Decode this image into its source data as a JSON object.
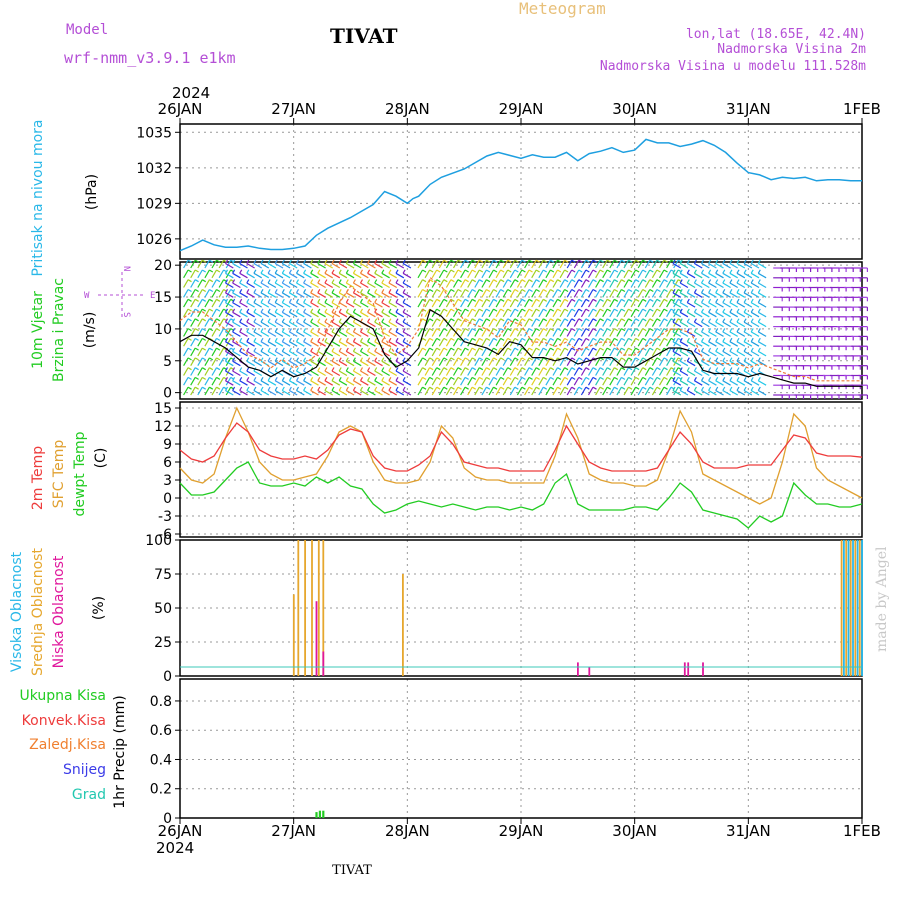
{
  "header": {
    "model_label": "Model",
    "model_name": "wrf-nmm_v3.9.1  e1km",
    "station": "TIVAT",
    "meteogram_title": "Meteogram",
    "lonlat": "lon,lat (18.65E, 42.4N)",
    "elevation": "Nadmorska Visina 2m",
    "model_elevation": "Nadmorska Visina u modelu 111.528m"
  },
  "footer": {
    "station": "TIVAT"
  },
  "watermark": "made by Angel",
  "time_axis": {
    "year": "2024",
    "labels": [
      "26JAN",
      "27JAN",
      "28JAN",
      "29JAN",
      "30JAN",
      "31JAN",
      "1FEB"
    ]
  },
  "colors": {
    "pressure": "#1e9fe0",
    "temp2m": "#ee3c3c",
    "sfc": "#e0a030",
    "dewpt": "#22cc22",
    "high_cloud": "#2ab8e8",
    "mid_cloud": "#e6a72e",
    "low_cloud": "#e0169c",
    "total_precip": "#22cc22",
    "conv_precip": "#ee3c3c",
    "frozen_precip": "#f08030",
    "snow": "#3c3ce8",
    "hail": "#22c8b0"
  },
  "panels": {
    "pressure": {
      "label": "Pritisak na nivou mora",
      "unit": "(hPa)",
      "ticks": [
        "1026",
        "1029",
        "1032",
        "1035"
      ]
    },
    "wind": {
      "label1": "10m Vjetar",
      "label2": "Brzina i Pravac",
      "unit": "(m/s)",
      "ticks": [
        "0",
        "5",
        "10",
        "15",
        "20"
      ],
      "compass": [
        "N",
        "W",
        "E",
        "S"
      ]
    },
    "temperature": {
      "label_temp": "2m Temp",
      "label_sfc": "SFC Temp",
      "label_dew": "dewpt Temp",
      "unit": "(C)",
      "ticks": [
        "-6",
        "-3",
        "0",
        "3",
        "6",
        "9",
        "12",
        "15"
      ]
    },
    "cloud": {
      "label_high": "Visoka Oblacnost",
      "label_mid": "Srednja Oblacnost",
      "label_low": "Niska Oblacnost",
      "unit": "(%)",
      "ticks": [
        "0",
        "25",
        "50",
        "75",
        "100"
      ]
    },
    "precip": {
      "legend": [
        "Ukupna Kisa",
        "Konvek.Kisa",
        "Zaledj.Kisa",
        "Snijeg",
        "Grad"
      ],
      "unit": "1hr Precip (mm)",
      "ticks": [
        "0",
        "0.2",
        "0.4",
        "0.6",
        "0.8"
      ]
    }
  },
  "chart_data": [
    {
      "type": "line",
      "ylabel": "Pritisak na nivou mora (hPa)",
      "ylim": [
        1024.3,
        1035.7
      ],
      "x_days": [
        0,
        0.1,
        0.2,
        0.3,
        0.4,
        0.5,
        0.6,
        0.7,
        0.8,
        0.9,
        1.0,
        1.1,
        1.2,
        1.3,
        1.5,
        1.7,
        1.8,
        1.9,
        2.0,
        2.05,
        2.1,
        2.2,
        2.3,
        2.5,
        2.7,
        2.8,
        3.0,
        3.1,
        3.2,
        3.3,
        3.4,
        3.5,
        3.6,
        3.7,
        3.8,
        3.9,
        4.0,
        4.1,
        4.2,
        4.3,
        4.4,
        4.5,
        4.6,
        4.7,
        4.8,
        4.9,
        5.0,
        5.1,
        5.2,
        5.3,
        5.4,
        5.5,
        5.6,
        5.7,
        5.8,
        5.9,
        6.0
      ],
      "series": [
        {
          "values": [
            1025.0,
            1025.4,
            1025.9,
            1025.5,
            1025.3,
            1025.3,
            1025.4,
            1025.2,
            1025.1,
            1025.1,
            1025.2,
            1025.4,
            1026.3,
            1026.9,
            1027.8,
            1028.9,
            1030.0,
            1029.6,
            1029.0,
            1029.4,
            1029.6,
            1030.6,
            1031.2,
            1031.9,
            1033.0,
            1033.3,
            1032.8,
            1033.1,
            1032.9,
            1032.9,
            1033.3,
            1032.6,
            1033.2,
            1033.4,
            1033.7,
            1033.3,
            1033.5,
            1034.4,
            1034.1,
            1034.1,
            1033.8,
            1034.0,
            1034.3,
            1033.9,
            1033.3,
            1032.4,
            1031.6,
            1031.4,
            1031.0,
            1031.2,
            1031.1,
            1031.2,
            1030.9,
            1031.0,
            1031.0,
            1030.9,
            1030.9
          ]
        }
      ]
    },
    {
      "type": "line",
      "ylabel": "10m Vjetar Brzina i Pravac (m/s)",
      "ylim": [
        -1,
        20.5
      ],
      "x_days": [
        0,
        0.1,
        0.2,
        0.3,
        0.4,
        0.5,
        0.6,
        0.7,
        0.8,
        0.9,
        1.0,
        1.1,
        1.2,
        1.3,
        1.4,
        1.5,
        1.6,
        1.7,
        1.8,
        1.9,
        2.0,
        2.1,
        2.2,
        2.3,
        2.4,
        2.5,
        2.6,
        2.7,
        2.8,
        2.9,
        3.0,
        3.1,
        3.2,
        3.3,
        3.4,
        3.5,
        3.6,
        3.7,
        3.8,
        3.9,
        4.0,
        4.1,
        4.2,
        4.3,
        4.4,
        4.5,
        4.6,
        4.7,
        4.8,
        4.9,
        5.0,
        5.1,
        5.2,
        5.3,
        5.4,
        5.5,
        5.6,
        5.7,
        5.8,
        5.9,
        6.0
      ],
      "series": [
        {
          "values": [
            8.0,
            9.0,
            9.0,
            8.0,
            7.0,
            5.5,
            4.0,
            3.5,
            2.5,
            3.5,
            2.5,
            3.0,
            4.0,
            7.0,
            10.0,
            12.0,
            11.0,
            10.0,
            6.0,
            4.0,
            5.0,
            7.0,
            13.0,
            12.0,
            10.0,
            8.0,
            7.5,
            7.0,
            6.0,
            8.0,
            7.5,
            5.5,
            5.5,
            5.0,
            5.5,
            4.5,
            5.0,
            5.5,
            5.5,
            4.0,
            4.0,
            5.0,
            6.0,
            7.0,
            7.0,
            6.5,
            3.5,
            3.0,
            3.0,
            3.0,
            2.5,
            3.0,
            2.5,
            2.0,
            1.5,
            1.5,
            1.0,
            1.0,
            1.0,
            1.0,
            1.0
          ]
        }
      ]
    },
    {
      "type": "line",
      "ylabel": "Temp (C)",
      "ylim": [
        -6.5,
        16
      ],
      "x_days": [
        0,
        0.1,
        0.2,
        0.3,
        0.4,
        0.5,
        0.6,
        0.7,
        0.8,
        0.9,
        1.0,
        1.1,
        1.2,
        1.3,
        1.4,
        1.5,
        1.6,
        1.7,
        1.8,
        1.9,
        2.0,
        2.1,
        2.2,
        2.3,
        2.4,
        2.5,
        2.6,
        2.7,
        2.8,
        2.9,
        3.0,
        3.1,
        3.2,
        3.3,
        3.4,
        3.5,
        3.6,
        3.7,
        3.8,
        3.9,
        4.0,
        4.1,
        4.2,
        4.3,
        4.4,
        4.5,
        4.6,
        4.7,
        4.8,
        4.9,
        5.0,
        5.1,
        5.2,
        5.3,
        5.4,
        5.5,
        5.6,
        5.7,
        5.8,
        5.9,
        6.0
      ],
      "series": [
        {
          "name": "2m Temp",
          "values": [
            8.0,
            6.5,
            6.0,
            7.0,
            10.0,
            12.5,
            11.0,
            8.0,
            7.0,
            6.5,
            6.5,
            7.0,
            6.5,
            8.0,
            10.5,
            11.5,
            11.0,
            7.0,
            5.0,
            4.5,
            4.5,
            5.5,
            7.0,
            11.0,
            9.0,
            6.0,
            5.5,
            5.0,
            5.0,
            4.5,
            4.5,
            4.5,
            4.5,
            8.0,
            12.0,
            9.0,
            6.0,
            5.0,
            4.5,
            4.5,
            4.5,
            4.5,
            5.0,
            8.0,
            11.0,
            9.0,
            6.0,
            5.0,
            5.0,
            5.0,
            5.5,
            5.5,
            5.5,
            8.0,
            10.5,
            10.0,
            7.5,
            7.0,
            7.0,
            7.0,
            6.8
          ]
        },
        {
          "name": "SFC Temp",
          "values": [
            5.0,
            3.0,
            2.5,
            4.0,
            10.0,
            15.0,
            11.0,
            6.0,
            4.0,
            3.0,
            3.0,
            3.5,
            4.0,
            7.0,
            11.0,
            12.0,
            11.0,
            6.0,
            3.0,
            2.5,
            2.5,
            3.0,
            6.0,
            12.0,
            10.0,
            5.0,
            3.5,
            3.0,
            3.0,
            2.5,
            2.5,
            2.5,
            2.5,
            7.0,
            14.0,
            10.0,
            4.0,
            3.0,
            2.5,
            2.5,
            2.0,
            2.0,
            3.0,
            8.0,
            14.5,
            11.0,
            4.0,
            3.0,
            2.0,
            1.0,
            0.0,
            -1.0,
            0.0,
            6.0,
            14.0,
            12.0,
            5.0,
            3.0,
            2.0,
            1.0,
            0.0
          ]
        },
        {
          "name": "dewpt Temp",
          "values": [
            2.5,
            0.5,
            0.5,
            1.0,
            3.0,
            5.0,
            6.0,
            2.5,
            2.0,
            2.0,
            2.5,
            2.0,
            3.5,
            2.5,
            3.5,
            2.0,
            1.5,
            -1.0,
            -2.5,
            -2.0,
            -1.0,
            -0.5,
            -1.0,
            -1.5,
            -1.0,
            -1.5,
            -2.0,
            -1.5,
            -1.5,
            -2.0,
            -1.5,
            -2.0,
            -1.0,
            2.5,
            4.0,
            -1.0,
            -2.0,
            -2.0,
            -2.0,
            -2.0,
            -1.5,
            -1.5,
            -2.0,
            0.0,
            2.5,
            1.0,
            -2.0,
            -2.5,
            -3.0,
            -3.5,
            -5.0,
            -3.0,
            -4.0,
            -3.0,
            2.5,
            0.5,
            -1.0,
            -1.0,
            -1.5,
            -1.5,
            -1.0
          ]
        }
      ]
    },
    {
      "type": "bar",
      "ylabel": "Oblacnost (%)",
      "ylim": [
        0,
        100
      ],
      "series": [
        {
          "name": "Srednja Oblacnost",
          "x_days": [
            1.0,
            1.04,
            1.1,
            1.16,
            1.22,
            1.26,
            1.96,
            5.82,
            5.86,
            5.9,
            5.94,
            5.98
          ],
          "values": [
            60,
            100,
            100,
            100,
            100,
            100,
            75,
            100,
            100,
            100,
            100,
            100
          ]
        },
        {
          "name": "Visoka Oblacnost",
          "x_days": [
            5.84,
            5.88,
            5.92,
            5.96,
            6.0
          ],
          "values": [
            100,
            100,
            100,
            100,
            100
          ]
        },
        {
          "name": "Niska Oblacnost",
          "x_days": [
            1.2,
            1.26,
            3.5,
            3.6,
            3.98,
            4.44,
            4.47,
            4.6
          ],
          "values": [
            55,
            18,
            10,
            7,
            4,
            10,
            10,
            10
          ]
        }
      ]
    },
    {
      "type": "bar",
      "ylabel": "1hr Precip (mm)",
      "ylim": [
        0,
        0.95
      ],
      "series": [
        {
          "name": "Ukupna Kisa",
          "x_days": [
            1.2,
            1.23,
            1.26
          ],
          "values": [
            0.04,
            0.05,
            0.05
          ]
        }
      ]
    }
  ]
}
